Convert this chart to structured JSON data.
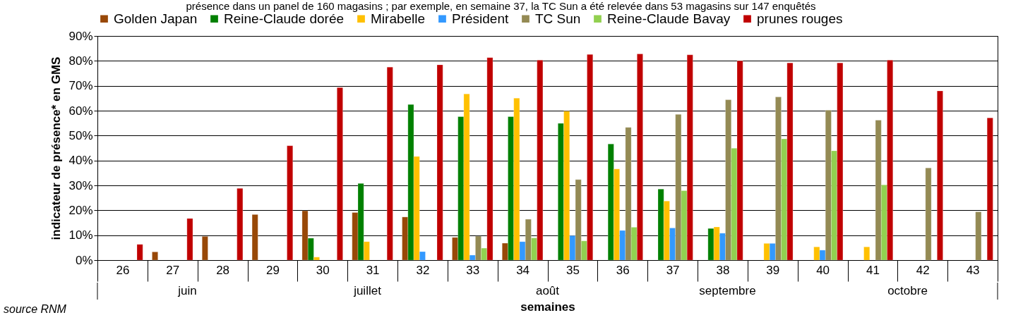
{
  "chart_data": {
    "type": "bar",
    "ylabel": "indicateur de présence* en GMS",
    "xlabel": "semaines",
    "categories": [
      "26",
      "27",
      "28",
      "29",
      "30",
      "31",
      "32",
      "33",
      "34",
      "35",
      "36",
      "37",
      "38",
      "39",
      "40",
      "41",
      "42",
      "43"
    ],
    "series": [
      {
        "name": "Golden Japan",
        "color": "#984807",
        "values": [
          null,
          3.3,
          9.5,
          18.3,
          19.8,
          19.1,
          17.3,
          9.1,
          6.8,
          null,
          null,
          null,
          null,
          null,
          null,
          null,
          null,
          null
        ]
      },
      {
        "name": "Reine-Claude dorée",
        "color": "#008000",
        "values": [
          null,
          null,
          null,
          null,
          8.8,
          30.8,
          62.5,
          57.6,
          57.6,
          54.9,
          46.6,
          28.5,
          12.7,
          null,
          null,
          null,
          null,
          null
        ]
      },
      {
        "name": "Mirabelle",
        "color": "#ffc000",
        "values": [
          null,
          null,
          null,
          null,
          1.2,
          7.4,
          41.6,
          66.7,
          65.0,
          59.8,
          36.6,
          23.7,
          13.3,
          6.7,
          5.3,
          5.3,
          null,
          null
        ]
      },
      {
        "name": "Président",
        "color": "#3399ff",
        "values": [
          null,
          null,
          null,
          null,
          null,
          null,
          3.4,
          2.0,
          7.4,
          9.8,
          11.9,
          12.9,
          10.8,
          6.7,
          4.0,
          null,
          null,
          null
        ]
      },
      {
        "name": "TC Sun",
        "color": "#948a54",
        "values": [
          null,
          null,
          null,
          null,
          null,
          null,
          null,
          9.6,
          16.4,
          32.3,
          53.3,
          58.5,
          64.4,
          65.5,
          60.2,
          56.2,
          37.0,
          19.4
        ]
      },
      {
        "name": "Reine-Claude Bavay",
        "color": "#92d050",
        "values": [
          null,
          null,
          null,
          null,
          null,
          null,
          null,
          4.8,
          8.9,
          7.7,
          13.2,
          27.9,
          44.9,
          48.7,
          43.9,
          30.2,
          null,
          null
        ]
      },
      {
        "name": "prunes rouges",
        "color": "#c00000",
        "values": [
          6.3,
          16.7,
          28.8,
          45.9,
          69.3,
          77.5,
          78.4,
          81.3,
          80.3,
          82.6,
          82.8,
          82.4,
          80.0,
          79.2,
          79.2,
          80.3,
          67.9,
          57.1
        ]
      }
    ],
    "ylim": [
      0,
      90
    ],
    "yticks": [
      {
        "value": 0,
        "label": "0%"
      },
      {
        "value": 10,
        "label": "10%"
      },
      {
        "value": 20,
        "label": "20%"
      },
      {
        "value": 30,
        "label": "30%"
      },
      {
        "value": 40,
        "label": "40%"
      },
      {
        "value": 50,
        "label": "50%"
      },
      {
        "value": 60,
        "label": "60%"
      },
      {
        "value": 70,
        "label": "70%"
      },
      {
        "value": 80,
        "label": "80%"
      },
      {
        "value": 90,
        "label": "90%"
      }
    ],
    "grid": "y",
    "legend": "top",
    "annotations": [
      "présence dans un panel de 160 magasins ; par exemple, en semaine 37, la TC Sun a été relevée dans 53 magasins sur 147 enquêtés",
      "source RNM",
      "juin",
      "juillet",
      "août",
      "septembre",
      "octobre"
    ]
  }
}
